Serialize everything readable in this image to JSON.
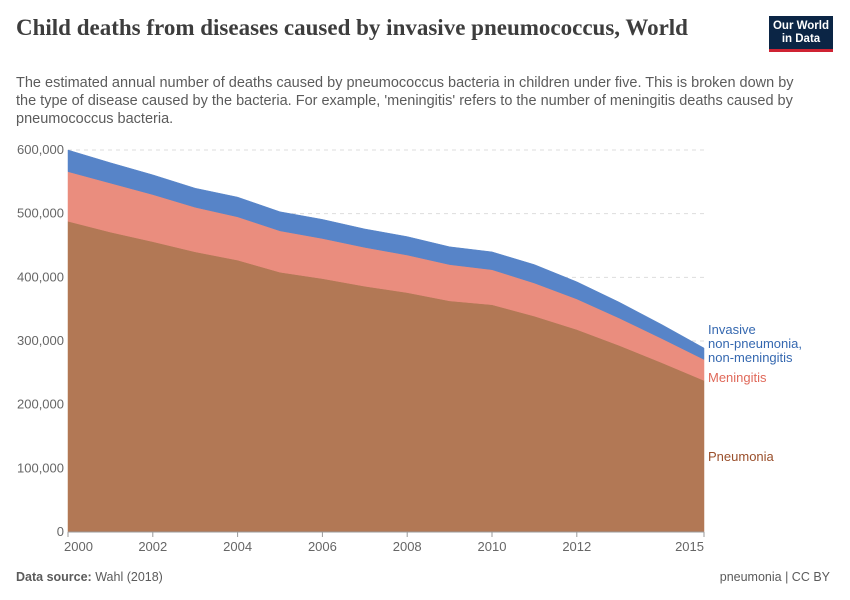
{
  "header": {
    "title": "Child deaths from diseases caused by invasive pneumococcus, World",
    "subtitle": "The estimated annual number of deaths caused by pneumococcus bacteria in children under five. This is broken down by the type of disease caused by the bacteria. For example, 'meningitis' refers to the number of meningitis deaths caused by pneumococcus bacteria.",
    "logo_line1": "Our World",
    "logo_line2": "in Data"
  },
  "footer": {
    "source_label": "Data source:",
    "source": "Wahl (2018)",
    "note": "pneumonia | CC BY"
  },
  "colors": {
    "pneumonia": "#b27855",
    "meningitis": "#ea8d7e",
    "invasive": "#5784c8",
    "pneumonia_label": "#9a4f2b",
    "meningitis_label": "#e0695a",
    "invasive_label": "#3568b0",
    "grid": "#dddddd",
    "axis_text": "#666666"
  },
  "chart_data": {
    "type": "area",
    "stacked": true,
    "x": [
      2000,
      2001,
      2002,
      2003,
      2004,
      2005,
      2006,
      2007,
      2008,
      2009,
      2010,
      2011,
      2012,
      2013,
      2014,
      2015
    ],
    "series": [
      {
        "name": "Pneumonia",
        "values": [
          488000,
          471000,
          456000,
          440000,
          427000,
          408000,
          398000,
          386000,
          376000,
          363000,
          357000,
          339000,
          318000,
          293000,
          266000,
          238000
        ]
      },
      {
        "name": "Meningitis",
        "values": [
          78000,
          77000,
          74000,
          70000,
          68000,
          65000,
          63000,
          61000,
          59000,
          57000,
          55000,
          52000,
          48000,
          43000,
          38000,
          33000
        ]
      },
      {
        "name": "Invasive non-pneumonia, non-meningitis",
        "label_lines": [
          "Invasive",
          "non-pneumonia,",
          "non-meningitis"
        ],
        "values": [
          34000,
          32000,
          31000,
          30000,
          31000,
          30000,
          30000,
          29000,
          29000,
          28000,
          28000,
          29000,
          27000,
          25000,
          22000,
          18000
        ]
      }
    ],
    "xticks": [
      2000,
      2002,
      2004,
      2006,
      2008,
      2010,
      2012,
      2015
    ],
    "yticks": [
      0,
      100000,
      200000,
      300000,
      400000,
      500000,
      600000
    ],
    "ytick_labels": [
      "0",
      "100,000",
      "200,000",
      "300,000",
      "400,000",
      "500,000",
      "600,000"
    ],
    "xlim": [
      2000,
      2015
    ],
    "ylim": [
      0,
      600000
    ],
    "grid": "horizontal dashed",
    "legend": "inline labels at right end"
  }
}
